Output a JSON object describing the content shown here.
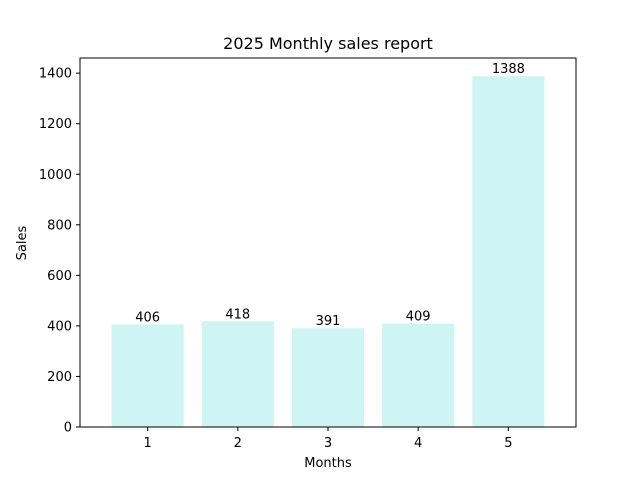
{
  "chart_data": {
    "type": "bar",
    "title": "2025 Monthly sales report",
    "xlabel": "Months",
    "ylabel": "Sales",
    "categories": [
      "1",
      "2",
      "3",
      "4",
      "5"
    ],
    "values": [
      406,
      418,
      391,
      409,
      1388
    ],
    "data_labels": [
      "406",
      "418",
      "391",
      "409",
      "1388"
    ],
    "ylim": [
      0,
      1460
    ],
    "yticks": [
      0,
      200,
      400,
      600,
      800,
      1000,
      1200,
      1400
    ],
    "bar_color": "#cff4f4",
    "grid": false,
    "legend": "none"
  }
}
